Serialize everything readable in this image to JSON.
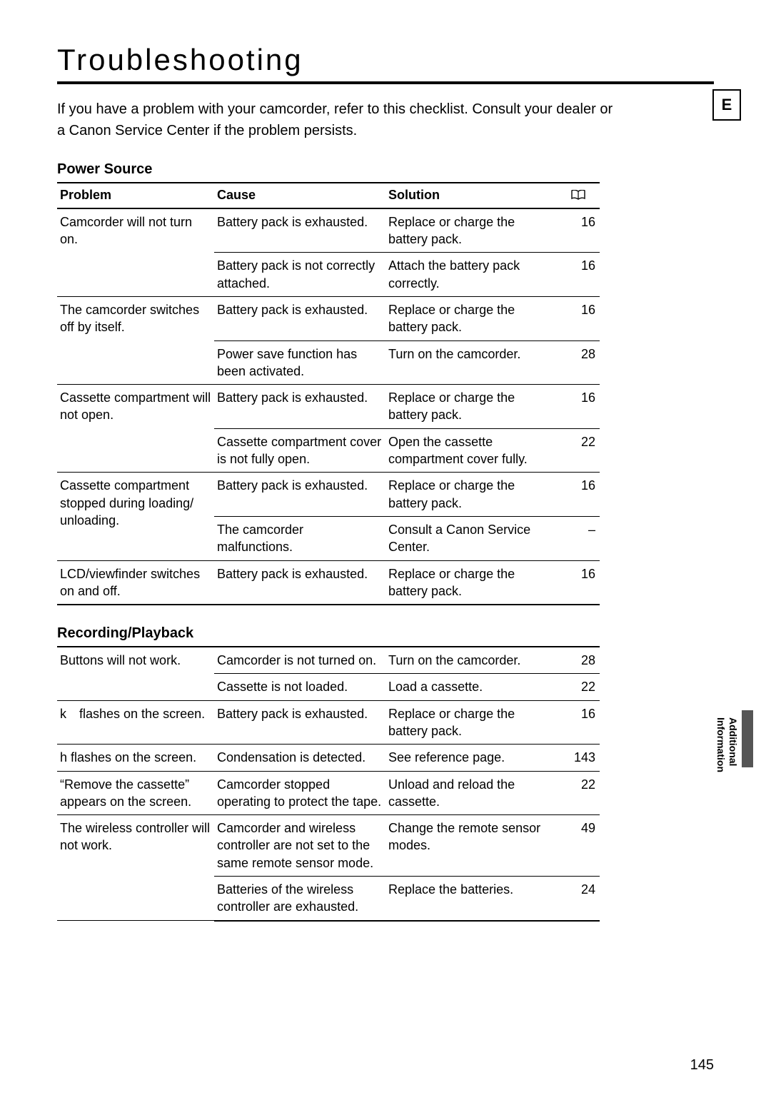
{
  "title": "Troubleshooting",
  "intro": "If you have a problem with your camcorder, refer to this checklist. Consult your dealer or a Canon Service Center if the problem persists.",
  "language_badge": "E",
  "table_headers": [
    "Problem",
    "Cause",
    "Solution",
    "ref"
  ],
  "sections": [
    {
      "title": "Power Source",
      "show_header": true,
      "rows": [
        {
          "problem": "Camcorder will not turn on.",
          "problem_rowspan": 2,
          "cause": "Battery pack is exhausted.",
          "solution": "Replace or charge the battery pack.",
          "ref": "16"
        },
        {
          "cause": "Battery pack is not correctly attached.",
          "solution": "Attach the battery pack correctly.",
          "ref": "16"
        },
        {
          "problem": "The camcorder switches off by itself.",
          "problem_rowspan": 2,
          "cause": "Battery pack is exhausted.",
          "solution": "Replace or charge the battery pack.",
          "ref": "16"
        },
        {
          "cause": "Power save function has been activated.",
          "solution": "Turn on the camcorder.",
          "ref": "28"
        },
        {
          "problem": "Cassette compartment will not open.",
          "problem_rowspan": 2,
          "cause": "Battery pack is exhausted.",
          "solution": "Replace or charge the battery pack.",
          "ref": "16"
        },
        {
          "cause": "Cassette compartment cover is not fully open.",
          "solution": "Open the cassette compartment cover fully.",
          "ref": "22"
        },
        {
          "problem": "Cassette compartment stopped during loading/ unloading.",
          "problem_rowspan": 2,
          "cause": "Battery pack is exhausted.",
          "solution": "Replace or charge the battery pack.",
          "ref": "16"
        },
        {
          "cause": "The camcorder malfunctions.",
          "solution": "Consult a Canon Service Center.",
          "ref": "–"
        },
        {
          "problem": "LCD/viewfinder switches on and off.",
          "problem_rowspan": 1,
          "cause": "Battery pack is exhausted.",
          "solution": "Replace or charge the battery pack.",
          "ref": "16",
          "last": true
        }
      ]
    },
    {
      "title": "Recording/Playback",
      "show_header": false,
      "rows": [
        {
          "problem": "Buttons will not work.",
          "problem_rowspan": 2,
          "cause": "Camcorder is not turned on.",
          "solution": "Turn on the camcorder.",
          "ref": "28",
          "top": true
        },
        {
          "cause": "Cassette is not loaded.",
          "solution": "Load a cassette.",
          "ref": "22"
        },
        {
          "problem": "k flashes on the screen.",
          "problem_rowspan": 1,
          "cause": "Battery pack is exhausted.",
          "solution": "Replace or charge the battery pack.",
          "ref": "16"
        },
        {
          "problem": "h  flashes on the screen.",
          "problem_rowspan": 1,
          "cause": "Condensation is detected.",
          "solution": "See reference page.",
          "ref": "143"
        },
        {
          "problem": "“Remove the cassette” appears on the screen.",
          "problem_rowspan": 1,
          "cause": "Camcorder stopped operating to protect the tape.",
          "solution": "Unload and reload the cassette.",
          "ref": "22"
        },
        {
          "problem": "The wireless controller will not work.",
          "problem_rowspan": 2,
          "cause": "Camcorder and wireless controller are not set to the same remote sensor mode.",
          "solution": "Change the remote sensor modes.",
          "ref": "49"
        },
        {
          "cause": "Batteries of the wireless controller are exhausted.",
          "solution": "Replace the batteries.",
          "ref": "24",
          "last": true
        }
      ]
    }
  ],
  "side_tab": {
    "line1": "Additional",
    "line2": "Information"
  },
  "page_number": "145",
  "colors": {
    "text": "#000000",
    "rule": "#000000",
    "side_tab": "#555555",
    "background": "#ffffff"
  }
}
